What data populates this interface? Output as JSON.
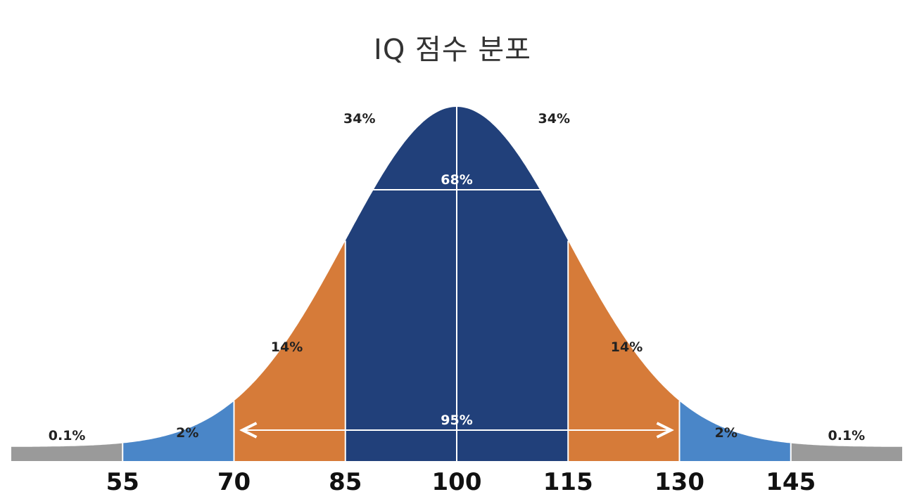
{
  "title": "IQ 점수 분포",
  "colors": {
    "center": "#21407a",
    "inner": "#d67b39",
    "outer": "#4a86c8",
    "tail": "#9a9a9a",
    "arrow": "#ffffff"
  },
  "chart_data": {
    "type": "area",
    "title": "IQ 점수 분포",
    "distribution": "normal",
    "mean": 100,
    "sd": 15,
    "xlim": [
      40,
      160
    ],
    "x_ticks": [
      "55",
      "70",
      "85",
      "100",
      "115",
      "130",
      "145"
    ],
    "bands": [
      {
        "from": 40,
        "to": 55,
        "label": "0.1%",
        "color": "#9a9a9a"
      },
      {
        "from": 55,
        "to": 70,
        "label": "2%",
        "color": "#4a86c8"
      },
      {
        "from": 70,
        "to": 85,
        "label": "14%",
        "color": "#d67b39"
      },
      {
        "from": 85,
        "to": 100,
        "label": "34%",
        "color": "#21407a"
      },
      {
        "from": 100,
        "to": 115,
        "label": "34%",
        "color": "#21407a"
      },
      {
        "from": 115,
        "to": 130,
        "label": "14%",
        "color": "#d67b39"
      },
      {
        "from": 130,
        "to": 145,
        "label": "2%",
        "color": "#4a86c8"
      },
      {
        "from": 145,
        "to": 160,
        "label": "0.1%",
        "color": "#9a9a9a"
      }
    ],
    "ranges": [
      {
        "from": 85,
        "to": 115,
        "label": "68%"
      },
      {
        "from": 70,
        "to": 130,
        "label": "95%"
      }
    ]
  }
}
